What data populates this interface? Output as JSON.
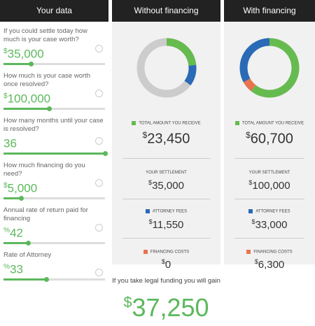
{
  "inputs": {
    "title": "Your data",
    "fields": [
      {
        "label": "If you could settle today how much is your case worth?",
        "prefix": "$",
        "value": "35,000"
      },
      {
        "label": "How much is your case worth once resolved?",
        "prefix": "$",
        "value": "100,000"
      },
      {
        "label": "How many months until your case is resolved?",
        "prefix": "",
        "value": "36"
      },
      {
        "label": "How much financing do you need?",
        "prefix": "$",
        "value": "5,000"
      },
      {
        "label": "Annual rate of return paid for financing",
        "prefix": "%",
        "value": "42"
      },
      {
        "label": "Rate of Attorney",
        "prefix": "%",
        "value": "33"
      }
    ]
  },
  "panels": [
    {
      "title": "Without financing",
      "total": {
        "label": "TOTAL AMOUNT YOU RECEIVE",
        "currency": "$",
        "amount": "23,450"
      },
      "settlement": {
        "label": "YOUR SETTLEMENT",
        "currency": "$",
        "amount": "35,000"
      },
      "fees": {
        "label": "ATTORNEY FEES",
        "currency": "$",
        "amount": "11,550"
      },
      "costs": {
        "label": "FINANCING COSTS",
        "currency": "$",
        "amount": "0"
      }
    },
    {
      "title": "With financing",
      "total": {
        "label": "TOTAL AMOUNT YOU RECEIVE",
        "currency": "$",
        "amount": "60,700"
      },
      "settlement": {
        "label": "YOUR SETTLEMENT",
        "currency": "$",
        "amount": "100,000"
      },
      "fees": {
        "label": "ATTORNEY FEES",
        "currency": "$",
        "amount": "33,000"
      },
      "costs": {
        "label": "FINANCING COSTS",
        "currency": "$",
        "amount": "6,300"
      }
    }
  ],
  "gain": {
    "text": "If you take legal funding you will gain",
    "currency": "$",
    "amount": "37,250"
  }
}
